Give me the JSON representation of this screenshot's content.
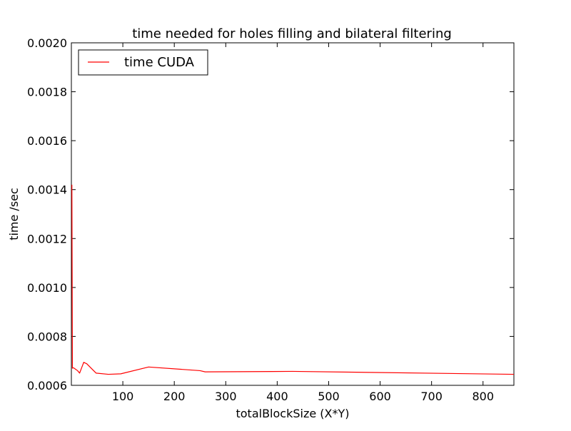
{
  "chart_data": {
    "type": "line",
    "title": "time needed for holes filling and bilateral filtering",
    "xlabel": "totalBlockSize (X*Y)",
    "ylabel": "time /sec",
    "xlim": [
      0,
      860
    ],
    "ylim": [
      0.0006,
      0.002
    ],
    "x_ticks": [
      100,
      200,
      300,
      400,
      500,
      600,
      700,
      800
    ],
    "y_ticks": [
      0.0006,
      0.0008,
      0.001,
      0.0012,
      0.0014,
      0.0016,
      0.0018,
      0.002
    ],
    "x_tick_labels": [
      "100",
      "200",
      "300",
      "400",
      "500",
      "600",
      "700",
      "800"
    ],
    "y_tick_labels": [
      "0.0006",
      "0.0008",
      "0.0010",
      "0.0012",
      "0.0014",
      "0.0016",
      "0.0018",
      "0.0020"
    ],
    "grid": false,
    "legend_position": "top-left",
    "series": [
      {
        "name": "time CUDA",
        "color": "#ff0000",
        "points": [
          [
            1,
            0.00142
          ],
          [
            2,
            0.00067
          ],
          [
            4,
            0.000672
          ],
          [
            8,
            0.000666
          ],
          [
            12,
            0.00066
          ],
          [
            16,
            0.00065
          ],
          [
            20,
            0.000672
          ],
          [
            24,
            0.000694
          ],
          [
            30,
            0.000688
          ],
          [
            48,
            0.00065
          ],
          [
            72,
            0.000645
          ],
          [
            96,
            0.000647
          ],
          [
            150,
            0.000675
          ],
          [
            250,
            0.00066
          ],
          [
            260,
            0.000655
          ],
          [
            430,
            0.000657
          ],
          [
            860,
            0.000645
          ]
        ]
      }
    ]
  }
}
